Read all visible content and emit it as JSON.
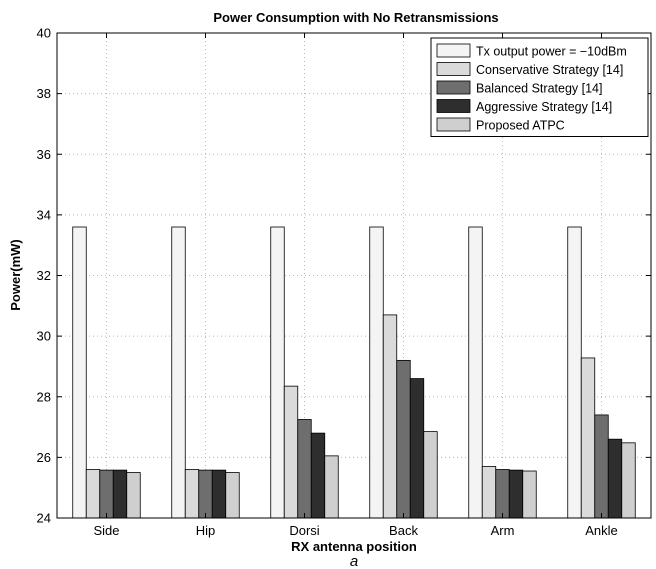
{
  "chart_data": {
    "type": "bar",
    "title": "Power Consumption with No Retransmissions",
    "xlabel": "RX antenna position",
    "ylabel": "Power(mW)",
    "caption": "a",
    "categories": [
      "Side",
      "Hip",
      "Dorsi",
      "Back",
      "Arm",
      "Ankle"
    ],
    "ylim": [
      24,
      40
    ],
    "yticks": [
      24,
      26,
      28,
      30,
      32,
      34,
      36,
      38,
      40
    ],
    "grid": true,
    "legend_position": "top-right",
    "series": [
      {
        "name": "Tx output power = −10dBm",
        "color": "#f4f4f4",
        "values": [
          33.6,
          33.6,
          33.6,
          33.6,
          33.6,
          33.6
        ]
      },
      {
        "name": "Conservative Strategy [14]",
        "color": "#dadada",
        "values": [
          25.6,
          25.6,
          28.35,
          30.7,
          25.7,
          29.28
        ]
      },
      {
        "name": "Balanced Strategy [14]",
        "color": "#6e6e6e",
        "values": [
          25.58,
          25.58,
          27.25,
          29.2,
          25.6,
          27.4
        ]
      },
      {
        "name": "Aggressive Strategy [14]",
        "color": "#2e2e2e",
        "values": [
          25.58,
          25.58,
          26.8,
          28.6,
          25.58,
          26.6
        ]
      },
      {
        "name": "Proposed ATPC",
        "color": "#cfcfcf",
        "values": [
          25.5,
          25.5,
          26.05,
          26.85,
          25.55,
          26.48
        ]
      }
    ]
  }
}
